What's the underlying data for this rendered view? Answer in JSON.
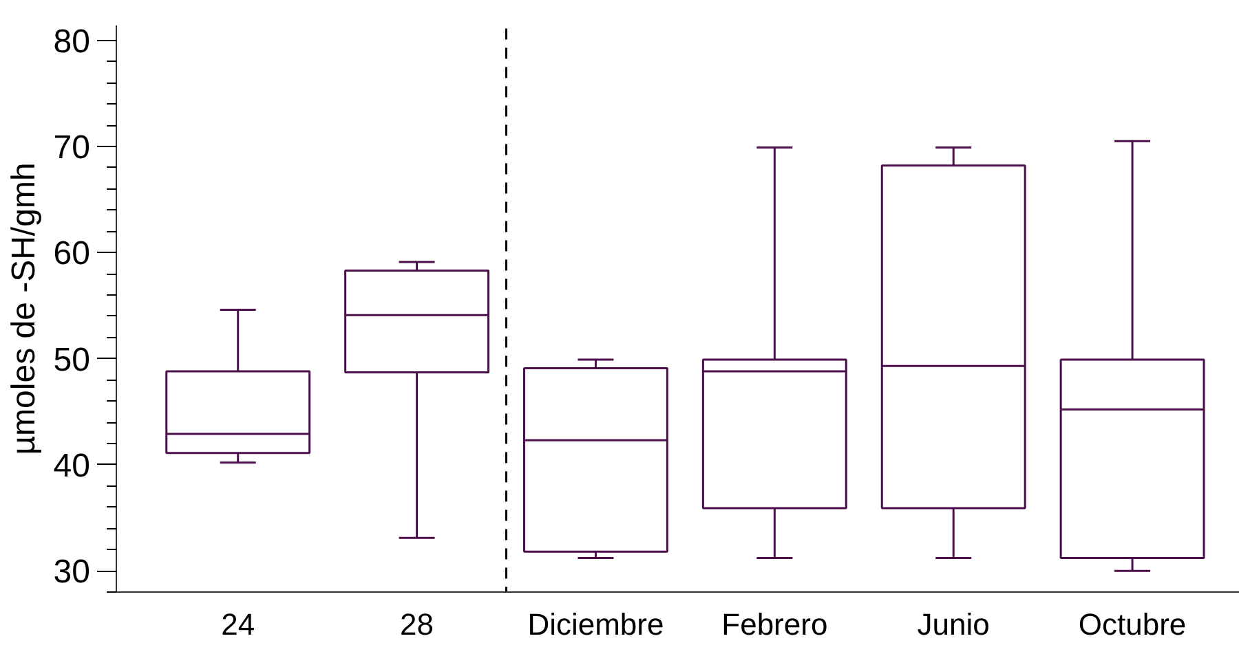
{
  "chart_data": {
    "type": "box",
    "ylabel": "µmoles de -SH/gmh",
    "categories": [
      "24",
      "28",
      "Diciembre",
      "Febrero",
      "Junio",
      "Octubre"
    ],
    "boxes": [
      {
        "low": 40.2,
        "q1": 41.1,
        "median": 42.9,
        "q3": 48.8,
        "high": 54.6
      },
      {
        "low": 33.1,
        "q1": 48.7,
        "median": 54.1,
        "q3": 58.3,
        "high": 59.1
      },
      {
        "low": 31.2,
        "q1": 31.8,
        "median": 42.3,
        "q3": 49.1,
        "high": 49.9
      },
      {
        "low": 31.2,
        "q1": 35.9,
        "median": 48.8,
        "q3": 49.9,
        "high": 69.9
      },
      {
        "low": 31.2,
        "q1": 35.9,
        "median": 49.3,
        "q3": 68.2,
        "high": 69.9
      },
      {
        "low": 30.0,
        "q1": 31.2,
        "median": 45.2,
        "q3": 49.9,
        "high": 70.5
      }
    ],
    "color": "#4b0f4b",
    "ylim": [
      28,
      81.4
    ],
    "yticks": [
      30,
      40,
      50,
      60,
      70,
      80
    ],
    "grid": false
  }
}
